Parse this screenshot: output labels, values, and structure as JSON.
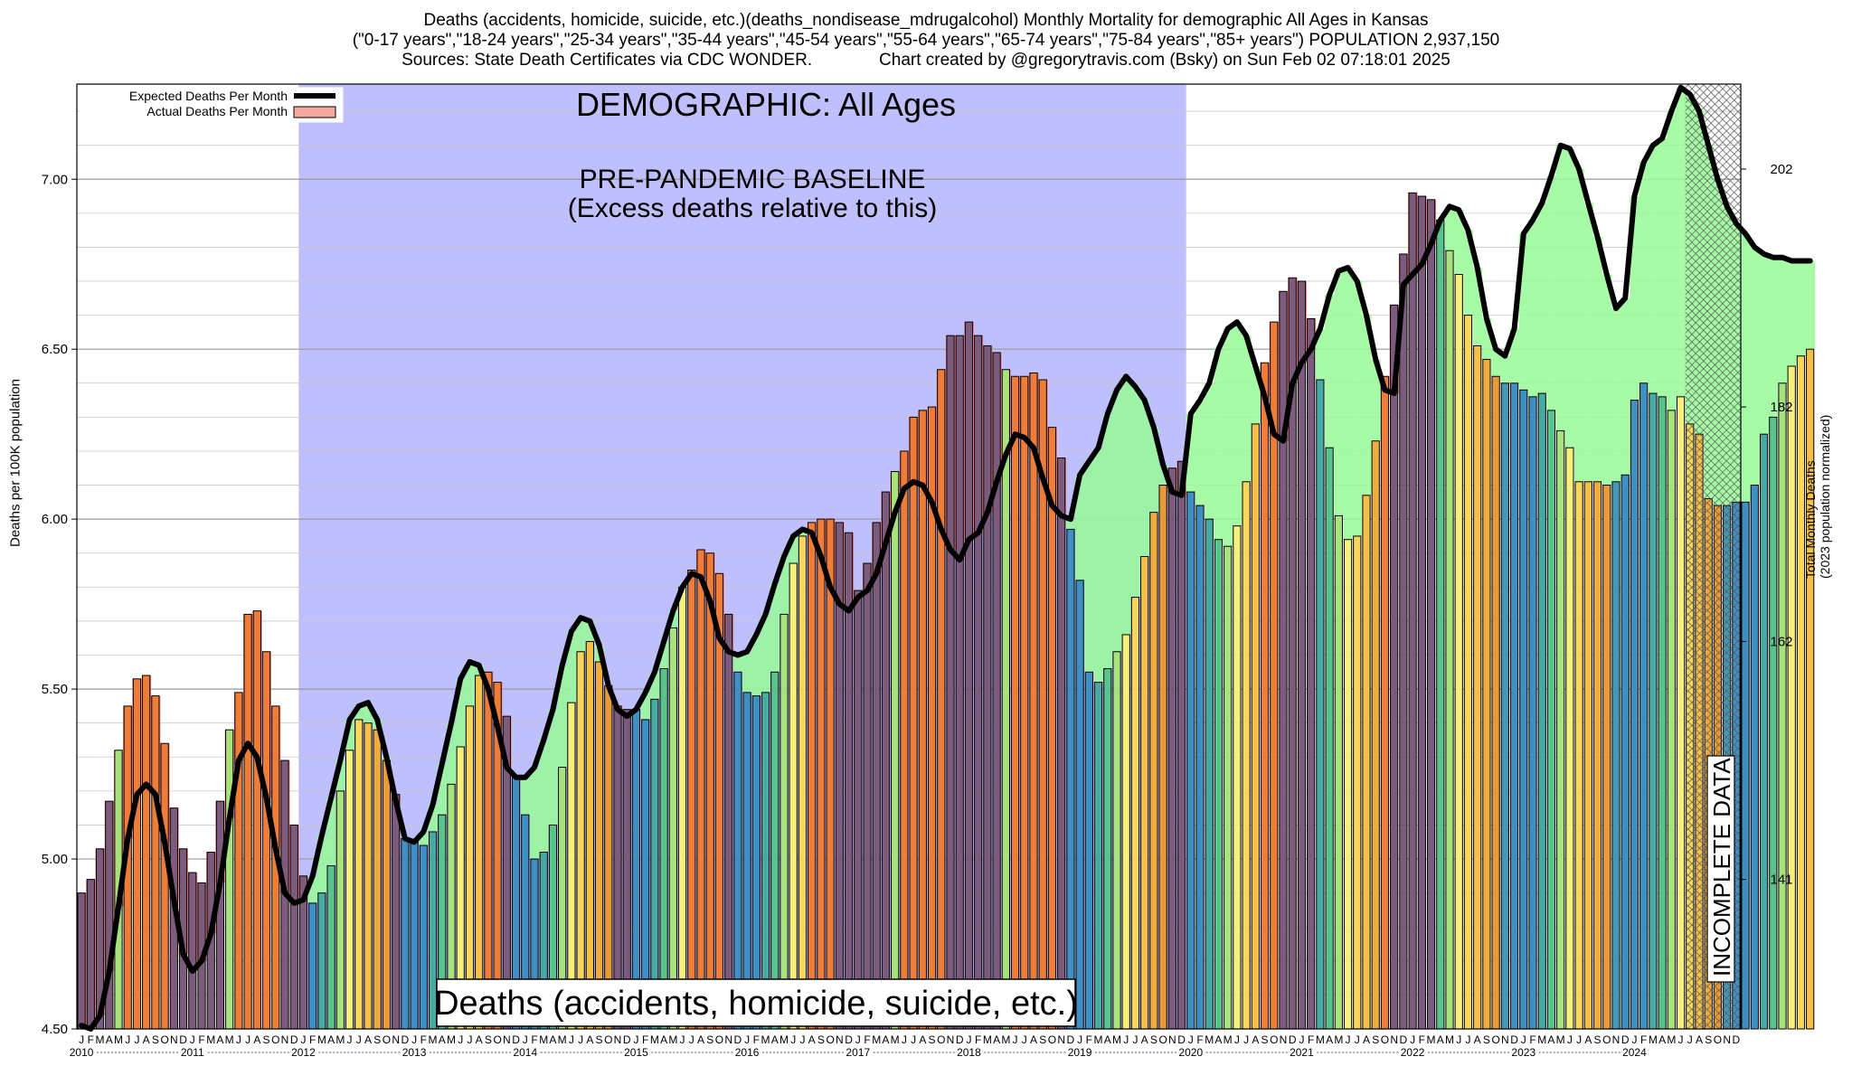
{
  "header": {
    "title_line1": "Deaths (accidents, homicide, suicide, etc.)(deaths_nondisease_mdrugalcohol) Monthly Mortality for demographic All Ages in Kansas",
    "title_line2": "(\"0-17 years\",\"18-24 years\",\"25-34 years\",\"35-44 years\",\"45-54 years\",\"55-64 years\",\"65-74 years\",\"75-84 years\",\"85+ years\") POPULATION 2,937,150",
    "title_line3": "Sources: State Death Certificates via CDC WONDER.              Chart created by @gregorytravis.com (Bsky) on Sun Feb 02 07:18:01 2025"
  },
  "colors": {
    "baseline_band": "#bfbffe",
    "excess_fill_green": "#98fa98",
    "deficit_fill": "#f87f7f",
    "expected_line": "#000000",
    "bar_palette": [
      "#3f8fc2",
      "#3f8fc2",
      "#48a9a3",
      "#58c48b",
      "#a7e27d",
      "#f5f07a",
      "#f8d65b",
      "#f4c04a",
      "#eeac3e",
      "#e89a38",
      "#4597b6",
      "#3f8fc2"
    ],
    "incomplete_hatch": "#555555"
  },
  "chart_data": {
    "type": "bar",
    "title": "Deaths (accidents, homicide, suicide, etc.)(deaths_nondisease_mdrugalcohol) Monthly Mortality for demographic All Ages in Kansas",
    "ylabel": "Deaths per 100K population",
    "y2label_line1": "Total Monthly Deaths",
    "y2label_line2": "(2023 population normalized)",
    "ylim": [
      4.5,
      7.28
    ],
    "y_ticks": [
      4.5,
      5.0,
      5.5,
      6.0,
      6.5,
      7.0
    ],
    "y_tick_labels": [
      "4.50",
      "5.00",
      "5.50",
      "6.00",
      "6.50",
      "7.00"
    ],
    "y2_ticks": [
      {
        "value": 4.94,
        "label": "141"
      },
      {
        "value": 5.64,
        "label": "162"
      },
      {
        "value": 6.33,
        "label": "182"
      },
      {
        "value": 7.03,
        "label": "202"
      }
    ],
    "grid": true,
    "legend_position": "top-left",
    "legend": [
      {
        "label": "Expected Deaths Per Month",
        "kind": "line"
      },
      {
        "label": "Actual Deaths Per Month",
        "kind": "swatch"
      }
    ],
    "annotations": {
      "demographic": "DEMOGRAPHIC: All Ages",
      "baseline_line1": "PRE-PANDEMIC BASELINE",
      "baseline_line2": "(Excess deaths relative to this)",
      "cause_box": "Deaths (accidents, homicide, suicide, etc.)",
      "incomplete": "INCOMPLETE DATA"
    },
    "start_year": 2010,
    "baseline_years": [
      2012,
      2019
    ],
    "incomplete_from_month_index": 174,
    "month_letters": [
      "J",
      "F",
      "M",
      "A",
      "M",
      "J",
      "J",
      "A",
      "S",
      "O",
      "N",
      "D"
    ],
    "years": [
      "2010",
      "2011",
      "2012",
      "2013",
      "2014",
      "2015",
      "2016",
      "2017",
      "2018",
      "2019",
      "2020",
      "2021",
      "2022",
      "2023",
      "2024"
    ],
    "actual": [
      [
        4.9,
        4.94,
        5.03,
        5.17,
        5.32,
        5.45,
        5.53,
        5.54,
        5.48,
        5.34,
        5.15,
        5.03
      ],
      [
        4.96,
        4.93,
        5.02,
        5.17,
        5.38,
        5.49,
        5.72,
        5.73,
        5.61,
        5.45,
        5.29,
        5.1
      ],
      [
        4.95,
        4.87,
        4.9,
        4.98,
        5.2,
        5.32,
        5.41,
        5.4,
        5.38,
        5.29,
        5.19,
        5.06
      ],
      [
        5.05,
        5.04,
        5.08,
        5.13,
        5.22,
        5.33,
        5.45,
        5.54,
        5.55,
        5.52,
        5.42,
        5.24
      ],
      [
        5.13,
        5.0,
        5.02,
        5.1,
        5.27,
        5.46,
        5.61,
        5.64,
        5.58,
        5.51,
        5.45,
        5.44
      ],
      [
        5.44,
        5.41,
        5.47,
        5.56,
        5.68,
        5.8,
        5.85,
        5.91,
        5.9,
        5.84,
        5.72,
        5.55
      ],
      [
        5.49,
        5.48,
        5.49,
        5.55,
        5.72,
        5.87,
        5.95,
        5.99,
        6.0,
        6.0,
        5.99,
        5.96
      ],
      [
        5.79,
        5.87,
        5.99,
        6.08,
        6.14,
        6.2,
        6.3,
        6.32,
        6.33,
        6.44,
        6.54,
        6.54
      ],
      [
        6.58,
        6.54,
        6.51,
        6.49,
        6.44,
        6.42,
        6.42,
        6.43,
        6.41,
        6.27,
        6.18,
        5.97
      ],
      [
        5.82,
        5.55,
        5.52,
        5.56,
        5.61,
        5.66,
        5.77,
        5.89,
        6.02,
        6.1,
        6.15,
        6.17
      ],
      [
        6.08,
        6.04,
        6.0,
        5.94,
        5.92,
        5.98,
        6.11,
        6.28,
        6.46,
        6.58,
        6.67,
        6.71
      ],
      [
        6.7,
        6.59,
        6.41,
        6.21,
        6.01,
        5.94,
        5.95,
        6.07,
        6.23,
        6.42,
        6.63,
        6.78
      ],
      [
        6.96,
        6.95,
        6.94,
        6.88,
        6.79,
        6.72,
        6.6,
        6.51,
        6.47,
        6.42,
        6.4,
        6.4
      ],
      [
        6.38,
        6.36,
        6.37,
        6.32,
        6.26,
        6.21,
        6.11,
        6.11,
        6.11,
        6.1,
        6.11,
        6.13
      ],
      [
        6.35,
        6.4,
        6.37,
        6.36,
        6.32,
        6.36,
        6.28,
        6.25,
        6.06,
        6.04,
        6.04,
        6.05,
        6.05,
        6.1,
        6.25,
        6.3,
        6.4,
        6.45,
        6.48,
        6.5
      ]
    ],
    "expected": [
      [
        4.51,
        4.5,
        4.54,
        4.67,
        4.86,
        5.06,
        5.19,
        5.22,
        5.19,
        5.05,
        4.88,
        4.72
      ],
      [
        4.67,
        4.7,
        4.78,
        4.93,
        5.12,
        5.29,
        5.34,
        5.3,
        5.18,
        5.03,
        4.9,
        4.87
      ],
      [
        4.88,
        4.95,
        5.07,
        5.18,
        5.29,
        5.41,
        5.45,
        5.46,
        5.41,
        5.3,
        5.17,
        5.06
      ],
      [
        5.05,
        5.08,
        5.16,
        5.28,
        5.4,
        5.53,
        5.58,
        5.57,
        5.5,
        5.39,
        5.27,
        5.24
      ],
      [
        5.24,
        5.27,
        5.35,
        5.44,
        5.57,
        5.67,
        5.71,
        5.7,
        5.63,
        5.51,
        5.44,
        5.42
      ],
      [
        5.44,
        5.49,
        5.55,
        5.64,
        5.73,
        5.8,
        5.84,
        5.83,
        5.76,
        5.65,
        5.61,
        5.6
      ],
      [
        5.61,
        5.66,
        5.72,
        5.81,
        5.89,
        5.95,
        5.97,
        5.96,
        5.89,
        5.8,
        5.75,
        5.73
      ],
      [
        5.77,
        5.79,
        5.84,
        5.93,
        6.02,
        6.09,
        6.11,
        6.1,
        6.05,
        5.97,
        5.91,
        5.88
      ],
      [
        5.94,
        5.96,
        6.02,
        6.11,
        6.19,
        6.25,
        6.24,
        6.21,
        6.12,
        6.04,
        6.01,
        6.0
      ],
      [
        6.13,
        6.17,
        6.21,
        6.31,
        6.38,
        6.42,
        6.39,
        6.35,
        6.27,
        6.16,
        6.08,
        6.07
      ],
      [
        6.31,
        6.35,
        6.4,
        6.5,
        6.56,
        6.58,
        6.54,
        6.45,
        6.36,
        6.25,
        6.23,
        6.4
      ],
      [
        6.46,
        6.5,
        6.56,
        6.66,
        6.73,
        6.74,
        6.7,
        6.6,
        6.47,
        6.38,
        6.37,
        6.69
      ],
      [
        6.72,
        6.75,
        6.81,
        6.88,
        6.92,
        6.91,
        6.85,
        6.74,
        6.59,
        6.5,
        6.48,
        6.56
      ],
      [
        6.84,
        6.88,
        6.93,
        7.01,
        7.1,
        7.09,
        7.03,
        6.93,
        6.83,
        6.72,
        6.62,
        6.65
      ],
      [
        6.95,
        7.05,
        7.1,
        7.12,
        7.2,
        7.27,
        7.25,
        7.2,
        7.1,
        7.0,
        6.92,
        6.87,
        6.84,
        6.8,
        6.78,
        6.77,
        6.77,
        6.76,
        6.76,
        6.76
      ]
    ]
  }
}
